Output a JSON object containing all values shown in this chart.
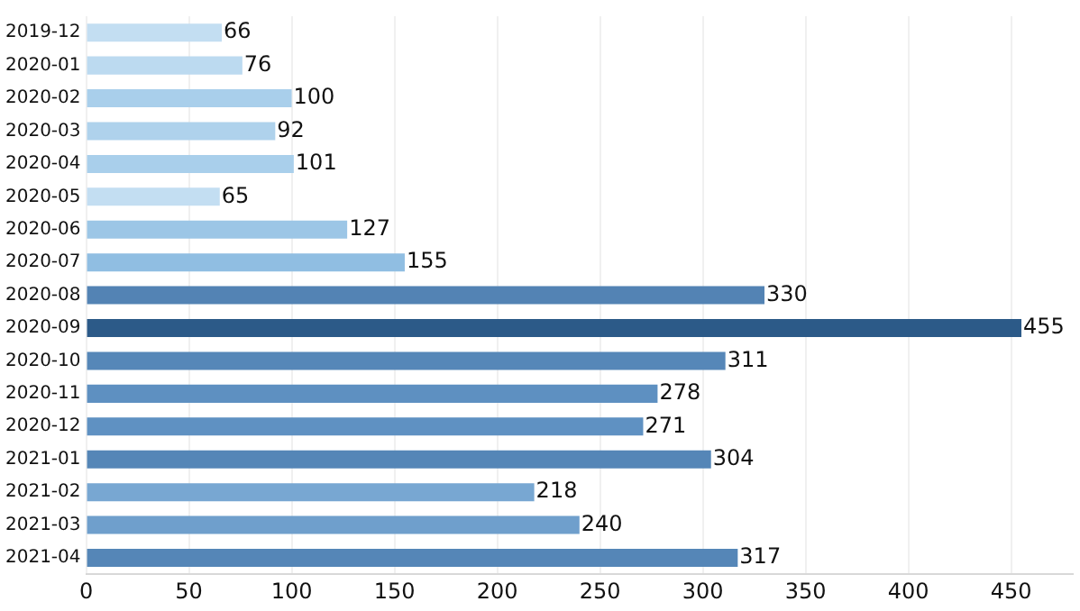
{
  "chart_data": {
    "type": "bar",
    "orientation": "horizontal",
    "categories": [
      "2019-12",
      "2020-01",
      "2020-02",
      "2020-03",
      "2020-04",
      "2020-05",
      "2020-06",
      "2020-07",
      "2020-08",
      "2020-09",
      "2020-10",
      "2020-11",
      "2020-12",
      "2021-01",
      "2021-02",
      "2021-03",
      "2021-04"
    ],
    "values": [
      66,
      76,
      100,
      92,
      101,
      65,
      127,
      155,
      330,
      455,
      311,
      278,
      271,
      304,
      218,
      240,
      317
    ],
    "colors": [
      "#c3def2",
      "#bcdaf0",
      "#a9cfeb",
      "#afd2ec",
      "#a9cfeb",
      "#c3def2",
      "#9cc6e6",
      "#90bee2",
      "#5383b4",
      "#2c5a88",
      "#5687b8",
      "#5e90c1",
      "#5f91c2",
      "#5586b7",
      "#78a7d2",
      "#6f9fcc",
      "#5586b7"
    ],
    "xlim": [
      0,
      480
    ],
    "xticks": [
      0,
      50,
      100,
      150,
      200,
      250,
      300,
      350,
      400,
      450
    ],
    "grid": "x",
    "data_labels": true
  }
}
